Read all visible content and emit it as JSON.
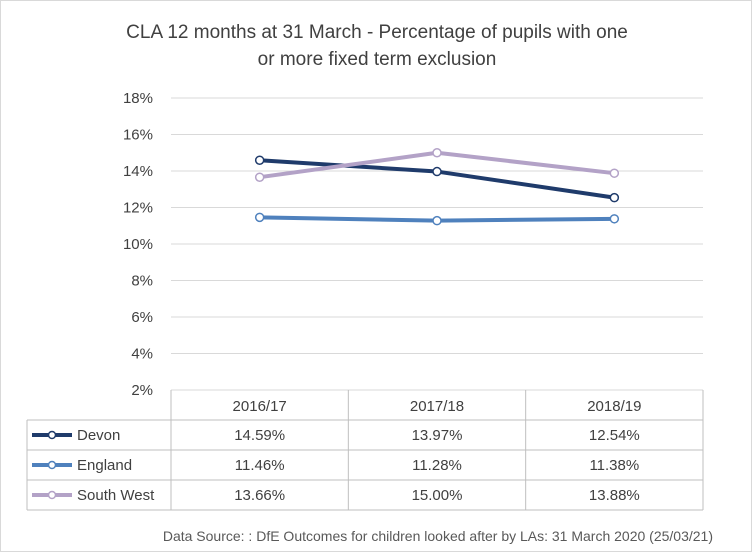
{
  "chart_data": {
    "type": "line",
    "title_lines": [
      "CLA 12 months at 31 March - Percentage of pupils with one",
      "or more fixed term exclusion"
    ],
    "categories": [
      "2016/17",
      "2017/18",
      "2018/19"
    ],
    "ylim": [
      2,
      18
    ],
    "yticks": [
      "18%",
      "16%",
      "14%",
      "12%",
      "10%",
      "8%",
      "6%",
      "4%",
      "2%"
    ],
    "ytick_values": [
      18,
      16,
      14,
      12,
      10,
      8,
      6,
      4,
      2
    ],
    "grid": true,
    "legend_placement": "data-table-left",
    "series": [
      {
        "name": "Devon",
        "values": [
          14.59,
          13.97,
          12.54
        ],
        "labels": [
          "14.59%",
          "13.97%",
          "12.54%"
        ],
        "color": "#1f3b6b"
      },
      {
        "name": "England",
        "values": [
          11.46,
          11.28,
          11.38
        ],
        "labels": [
          "11.46%",
          "11.28%",
          "11.38%"
        ],
        "color": "#4f81bd"
      },
      {
        "name": "South West",
        "values": [
          13.66,
          15.0,
          13.88
        ],
        "labels": [
          "13.66%",
          "15.00%",
          "13.88%"
        ],
        "color": "#b3a2c7"
      }
    ],
    "source": "Data Source: : DfE Outcomes for children looked after by LAs: 31 March 2020 (25/03/21)"
  }
}
